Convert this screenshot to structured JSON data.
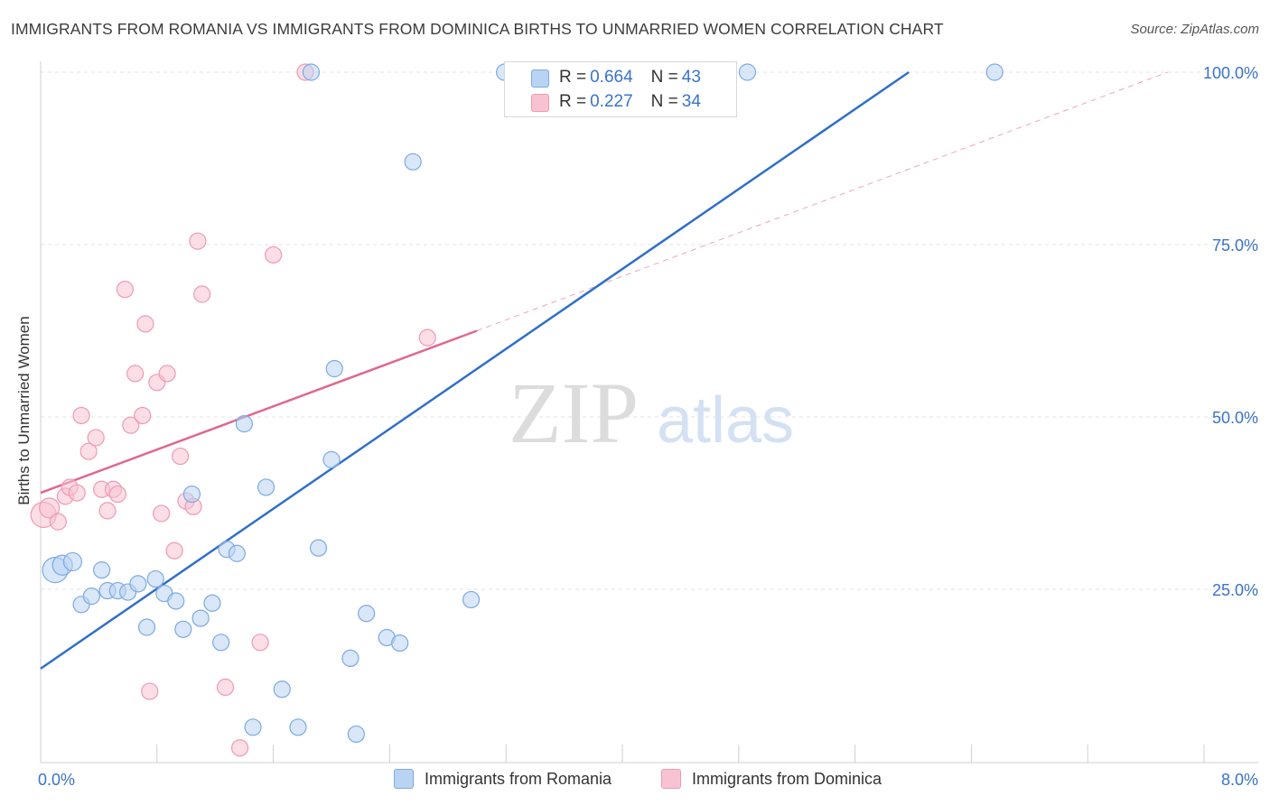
{
  "header": {
    "title": "IMMIGRANTS FROM ROMANIA VS IMMIGRANTS FROM DOMINICA BIRTHS TO UNMARRIED WOMEN CORRELATION CHART",
    "source": "Source: ZipAtlas.com"
  },
  "watermark": {
    "zip": "ZIP",
    "atlas": "atlas"
  },
  "legend": {
    "romania": {
      "r_label": "R = ",
      "r_value": "0.664",
      "n_label": "N = ",
      "n_value": "43"
    },
    "dominica": {
      "r_label": "R = ",
      "r_value": "0.227",
      "n_label": "N = ",
      "n_value": "34"
    }
  },
  "colors": {
    "romania_fill": "#b9d3f2",
    "romania_stroke": "#7aaae3",
    "romania_line": "#2f6fc8",
    "dominica_fill": "#f7c3d2",
    "dominica_stroke": "#ee9ab3",
    "dominica_line": "#e06890",
    "accent_text": "#3a73c9"
  },
  "chart_data": {
    "type": "scatter",
    "title": "IMMIGRANTS FROM ROMANIA VS IMMIGRANTS FROM DOMINICA BIRTHS TO UNMARRIED WOMEN CORRELATION CHART",
    "xlabel": "",
    "ylabel": "Births to Unmarried Women",
    "xlim": [
      0.0,
      8.0
    ],
    "ylim": [
      0,
      100
    ],
    "x_tick_labels": [
      "0.0%",
      "8.0%"
    ],
    "y_tick_labels": [
      "25.0%",
      "50.0%",
      "75.0%",
      "100.0%"
    ],
    "y_ticks": [
      25,
      50,
      75,
      100
    ],
    "grid": true,
    "legend_position": "top-center",
    "series": [
      {
        "name": "Immigrants from Romania",
        "color": "#7aaae3",
        "points": [
          [
            0.1,
            27.8,
            14
          ],
          [
            0.15,
            28.5,
            11
          ],
          [
            0.22,
            29.0,
            10
          ],
          [
            0.28,
            22.8,
            9
          ],
          [
            0.35,
            24.0,
            9
          ],
          [
            0.42,
            27.8,
            9
          ],
          [
            0.46,
            24.8,
            9
          ],
          [
            0.53,
            24.8,
            9
          ],
          [
            0.6,
            24.6,
            9
          ],
          [
            0.67,
            25.8,
            9
          ],
          [
            0.73,
            19.5,
            9
          ],
          [
            0.79,
            26.5,
            9
          ],
          [
            0.85,
            24.4,
            9
          ],
          [
            0.93,
            23.3,
            9
          ],
          [
            0.98,
            19.2,
            9
          ],
          [
            1.04,
            38.8,
            9
          ],
          [
            1.1,
            20.8,
            9
          ],
          [
            1.18,
            23.0,
            9
          ],
          [
            1.24,
            17.3,
            9
          ],
          [
            1.28,
            30.8,
            9
          ],
          [
            1.35,
            30.2,
            9
          ],
          [
            1.4,
            49.0,
            9
          ],
          [
            1.46,
            5.0,
            9
          ],
          [
            1.55,
            39.8,
            9
          ],
          [
            1.66,
            10.5,
            9
          ],
          [
            1.77,
            5.0,
            9
          ],
          [
            1.86,
            100.0,
            9
          ],
          [
            1.91,
            31.0,
            9
          ],
          [
            2.0,
            43.8,
            9
          ],
          [
            2.02,
            57.0,
            9
          ],
          [
            2.13,
            15.0,
            9
          ],
          [
            2.17,
            4.0,
            9
          ],
          [
            2.24,
            21.5,
            9
          ],
          [
            2.38,
            18.0,
            9
          ],
          [
            2.47,
            17.2,
            9
          ],
          [
            2.56,
            87.0,
            9
          ],
          [
            2.96,
            23.5,
            9
          ],
          [
            3.19,
            100.0,
            9
          ],
          [
            3.3,
            100.0,
            9
          ],
          [
            3.94,
            100.0,
            9
          ],
          [
            4.06,
            100.0,
            9
          ],
          [
            4.86,
            100.0,
            9
          ],
          [
            6.56,
            100.0,
            9
          ]
        ]
      },
      {
        "name": "Immigrants from Dominica",
        "color": "#ee9ab3",
        "points": [
          [
            0.02,
            35.8,
            14
          ],
          [
            0.06,
            36.8,
            11
          ],
          [
            0.12,
            34.8,
            9
          ],
          [
            0.17,
            38.5,
            9
          ],
          [
            0.2,
            39.8,
            9
          ],
          [
            0.25,
            39.0,
            9
          ],
          [
            0.28,
            50.2,
            9
          ],
          [
            0.33,
            45.0,
            9
          ],
          [
            0.38,
            47.0,
            9
          ],
          [
            0.42,
            39.5,
            9
          ],
          [
            0.46,
            36.4,
            9
          ],
          [
            0.5,
            39.5,
            9
          ],
          [
            0.53,
            38.8,
            9
          ],
          [
            0.58,
            68.5,
            9
          ],
          [
            0.62,
            48.8,
            9
          ],
          [
            0.65,
            56.3,
            9
          ],
          [
            0.7,
            50.2,
            9
          ],
          [
            0.72,
            63.5,
            9
          ],
          [
            0.75,
            10.2,
            9
          ],
          [
            0.8,
            55.0,
            9
          ],
          [
            0.83,
            36.0,
            9
          ],
          [
            0.87,
            56.3,
            9
          ],
          [
            0.92,
            30.6,
            9
          ],
          [
            0.96,
            44.3,
            9
          ],
          [
            1.0,
            37.8,
            9
          ],
          [
            1.05,
            37.0,
            9
          ],
          [
            1.08,
            75.5,
            9
          ],
          [
            1.11,
            67.8,
            9
          ],
          [
            1.27,
            10.8,
            9
          ],
          [
            1.37,
            2.0,
            9
          ],
          [
            1.51,
            17.3,
            9
          ],
          [
            1.6,
            73.5,
            9
          ],
          [
            1.82,
            100.0,
            9
          ],
          [
            2.66,
            61.5,
            9
          ]
        ]
      }
    ],
    "trendlines": [
      {
        "series": "Immigrants from Romania",
        "x": [
          0.0,
          5.97
        ],
        "y": [
          13.5,
          100.0
        ],
        "style": "solid"
      },
      {
        "series": "Immigrants from Dominica",
        "x": [
          0.0,
          3.0
        ],
        "y": [
          39.0,
          62.5
        ],
        "style": "solid"
      },
      {
        "series": "Immigrants from Dominica",
        "x": [
          3.0,
          7.75
        ],
        "y": [
          62.5,
          100.0
        ],
        "style": "dashed"
      }
    ]
  }
}
